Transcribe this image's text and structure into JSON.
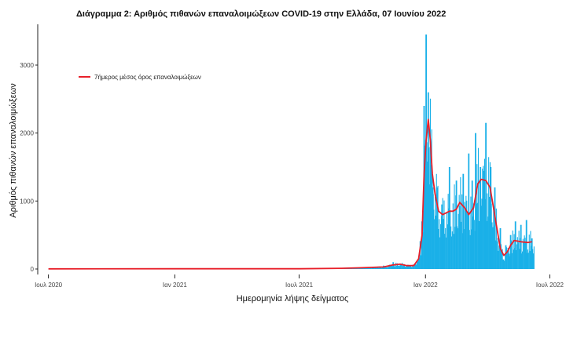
{
  "chart_data": {
    "type": "bar",
    "title": "Διάγραμμα 2: Αριθμός πιθανών επαναλοιμώξεων COVID-19 στην Ελλάδα, 07 Ιουνίου 2022",
    "xlabel": "Ημερομηνία λήψης δείγματος",
    "ylabel": "Αριθμός πιθανών επαναλοιμώξεων",
    "x_range": [
      "2020-06-20",
      "2022-07-20"
    ],
    "ylim": [
      0,
      3600
    ],
    "x_ticks": [
      {
        "date": "2020-07-01",
        "label": "Ιουλ 2020"
      },
      {
        "date": "2021-01-01",
        "label": "Ιαν 2021"
      },
      {
        "date": "2021-07-01",
        "label": "Ιουλ 2021"
      },
      {
        "date": "2022-01-01",
        "label": "Ιαν 2022"
      },
      {
        "date": "2022-07-01",
        "label": "Ιουλ 2022"
      }
    ],
    "y_ticks": [
      0,
      1000,
      2000,
      3000
    ],
    "legend": {
      "placement": "top-left",
      "entries": [
        {
          "label": "7ήμερος μέσος όρος επαναλοιμώξεων",
          "color": "#e8202a"
        }
      ]
    },
    "grid": false,
    "series": [
      {
        "name": "daily",
        "kind": "bar",
        "color": "#1ab0e8",
        "points": [
          [
            "2021-09-01",
            15
          ],
          [
            "2021-10-01",
            25
          ],
          [
            "2021-11-01",
            50
          ],
          [
            "2021-11-15",
            100
          ],
          [
            "2021-12-01",
            70
          ],
          [
            "2021-12-10",
            55
          ],
          [
            "2021-12-20",
            120
          ],
          [
            "2021-12-27",
            700
          ],
          [
            "2021-12-30",
            2400
          ],
          [
            "2022-01-02",
            3450
          ],
          [
            "2022-01-05",
            2600
          ],
          [
            "2022-01-08",
            1800
          ],
          [
            "2022-01-12",
            1100
          ],
          [
            "2022-01-18",
            1200
          ],
          [
            "2022-01-25",
            950
          ],
          [
            "2022-02-05",
            1500
          ],
          [
            "2022-02-15",
            1300
          ],
          [
            "2022-02-25",
            1400
          ],
          [
            "2022-03-05",
            1700
          ],
          [
            "2022-03-10",
            1300
          ],
          [
            "2022-03-15",
            2000
          ],
          [
            "2022-03-22",
            1500
          ],
          [
            "2022-03-30",
            2150
          ],
          [
            "2022-04-06",
            1500
          ],
          [
            "2022-04-12",
            1200
          ],
          [
            "2022-04-20",
            600
          ],
          [
            "2022-04-28",
            350
          ],
          [
            "2022-05-05",
            500
          ],
          [
            "2022-05-12",
            700
          ],
          [
            "2022-05-20",
            650
          ],
          [
            "2022-05-28",
            720
          ],
          [
            "2022-06-05",
            450
          ]
        ]
      },
      {
        "name": "7ήμερος μέσος όρος επαναλοιμώξεων",
        "kind": "line",
        "color": "#e8202a",
        "points": [
          [
            "2020-07-01",
            2
          ],
          [
            "2021-01-01",
            3
          ],
          [
            "2021-07-01",
            4
          ],
          [
            "2021-09-01",
            10
          ],
          [
            "2021-10-01",
            18
          ],
          [
            "2021-11-01",
            30
          ],
          [
            "2021-11-15",
            60
          ],
          [
            "2021-11-25",
            70
          ],
          [
            "2021-12-05",
            50
          ],
          [
            "2021-12-15",
            50
          ],
          [
            "2021-12-22",
            150
          ],
          [
            "2021-12-27",
            500
          ],
          [
            "2021-12-30",
            1400
          ],
          [
            "2022-01-02",
            1900
          ],
          [
            "2022-01-05",
            2200
          ],
          [
            "2022-01-08",
            1900
          ],
          [
            "2022-01-11",
            1400
          ],
          [
            "2022-01-15",
            1100
          ],
          [
            "2022-01-20",
            850
          ],
          [
            "2022-01-26",
            800
          ],
          [
            "2022-02-05",
            850
          ],
          [
            "2022-02-10",
            850
          ],
          [
            "2022-02-15",
            880
          ],
          [
            "2022-02-20",
            980
          ],
          [
            "2022-02-27",
            900
          ],
          [
            "2022-03-05",
            800
          ],
          [
            "2022-03-12",
            900
          ],
          [
            "2022-03-18",
            1250
          ],
          [
            "2022-03-23",
            1320
          ],
          [
            "2022-03-30",
            1300
          ],
          [
            "2022-04-05",
            1200
          ],
          [
            "2022-04-10",
            900
          ],
          [
            "2022-04-15",
            600
          ],
          [
            "2022-04-20",
            300
          ],
          [
            "2022-04-25",
            200
          ],
          [
            "2022-04-30",
            250
          ],
          [
            "2022-05-05",
            350
          ],
          [
            "2022-05-10",
            420
          ],
          [
            "2022-05-20",
            400
          ],
          [
            "2022-05-30",
            390
          ],
          [
            "2022-06-05",
            400
          ]
        ]
      }
    ]
  }
}
